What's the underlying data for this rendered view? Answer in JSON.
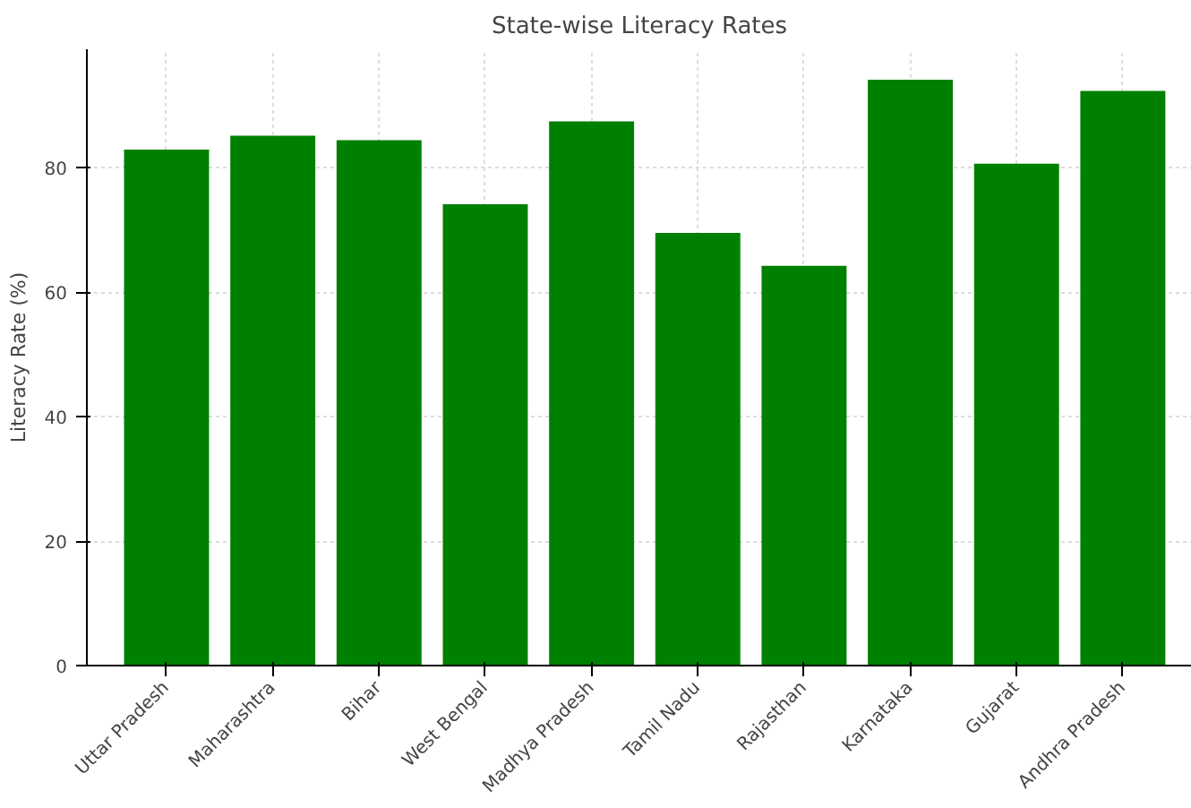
{
  "chart_data": {
    "type": "bar",
    "title": "State-wise Literacy Rates",
    "ylabel": "Literacy Rate (%)",
    "categories": [
      "Uttar Pradesh",
      "Maharashtra",
      "Bihar",
      "West Bengal",
      "Madhya Pradesh",
      "Tamil Nadu",
      "Rajasthan",
      "Karnataka",
      "Gujarat",
      "Andhra Pradesh"
    ],
    "values": [
      82.9,
      85.1,
      84.4,
      74.1,
      87.4,
      69.5,
      64.2,
      94.1,
      80.6,
      92.3
    ],
    "color": "#008000",
    "ylim": [
      0,
      99
    ],
    "yticks": [
      0,
      20,
      40,
      60,
      80
    ],
    "grid": true
  }
}
